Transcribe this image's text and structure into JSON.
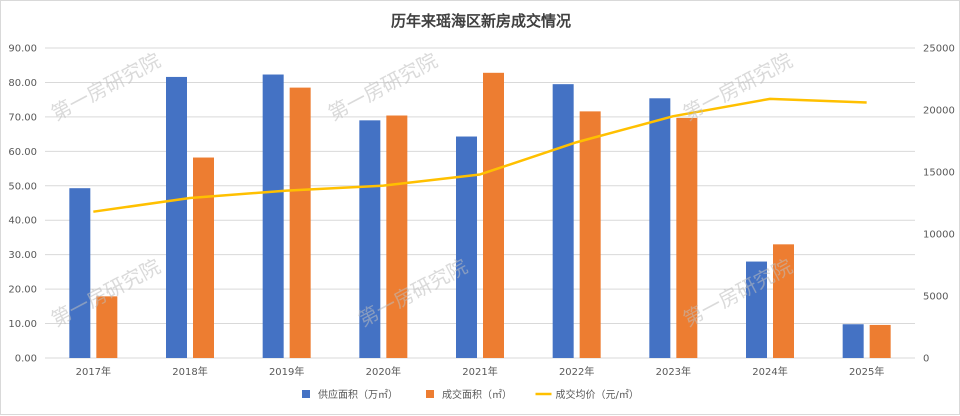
{
  "chart_data": {
    "type": "bar",
    "title": "历年来瑶海区新房成交情况",
    "categories": [
      "2017年",
      "2018年",
      "2019年",
      "2020年",
      "2021年",
      "2022年",
      "2023年",
      "2024年",
      "2025年"
    ],
    "series": [
      {
        "name": "供应面积（万㎡）",
        "type": "bar",
        "axis": "left",
        "color": "#4472C4",
        "values": [
          49.3,
          81.6,
          82.3,
          69.0,
          64.3,
          79.5,
          75.4,
          28.0,
          9.8
        ]
      },
      {
        "name": "成交面积（㎡）",
        "type": "bar",
        "axis": "left",
        "color": "#ED7D31",
        "values": [
          17.9,
          58.2,
          78.5,
          70.4,
          82.8,
          71.6,
          69.7,
          33.0,
          9.6
        ]
      },
      {
        "name": "成交均价（元/㎡）",
        "type": "line",
        "axis": "right",
        "color": "#FFC000",
        "values": [
          11800,
          12900,
          13500,
          13900,
          14800,
          17400,
          19500,
          20900,
          20600
        ]
      }
    ],
    "y_left": {
      "range": [
        0,
        90
      ],
      "ticks": [
        "0.00",
        "10.00",
        "20.00",
        "30.00",
        "40.00",
        "50.00",
        "60.00",
        "70.00",
        "80.00",
        "90.00"
      ]
    },
    "y_right": {
      "range": [
        0,
        25000
      ],
      "ticks": [
        "0",
        "5000",
        "10000",
        "15000",
        "20000",
        "25000"
      ]
    },
    "grid": true,
    "legend": "bottom",
    "watermark": "第一房研究院"
  }
}
